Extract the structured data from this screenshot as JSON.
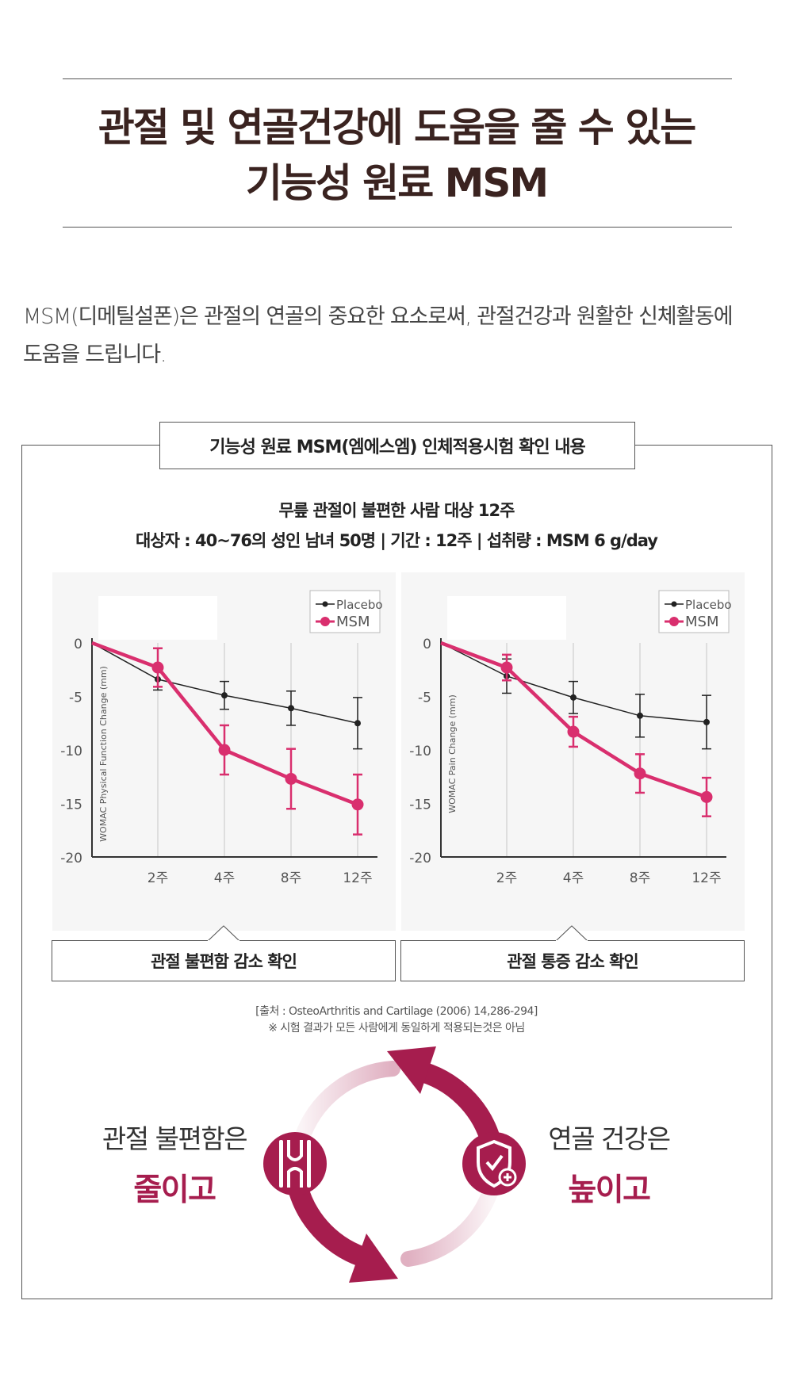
{
  "header": {
    "title_line1": "관절 및 연골건강에 도움을 줄 수 있는",
    "title_line2": "기능성 원료 MSM"
  },
  "intro": {
    "line1": "MSM(디메틸설폰)은 관절의 연골의  중요한 요소로써, 관절건강과 원활한 신체활동에",
    "line2": "도움을 드립니다."
  },
  "study": {
    "tab_title": "기능성 원료 MSM(엠에스엠) 인체적용시험 확인 내용",
    "line1": "무릎 관절이 불편한 사람 대상 12주",
    "line2": "대상자 : 40~76의 성인 남녀 50명   |   기간 : 12주   |   섭취량 : MSM 6 g/day"
  },
  "colors": {
    "title": "#3a2320",
    "msm": "#d92f6e",
    "placebo": "#222222",
    "accent": "#a61d4e"
  },
  "chart_data": [
    {
      "type": "line",
      "ylabel": "WOMAC Physical Function Change (mm)",
      "categories": [
        "0",
        "2주",
        "4주",
        "8주",
        "12주"
      ],
      "x_tick_labels": [
        "2주",
        "4주",
        "8주",
        "12주"
      ],
      "y_ticks": [
        "0",
        "-5",
        "-10",
        "-15",
        "-20"
      ],
      "ylim": [
        -20,
        0
      ],
      "legend_position": "top-right",
      "series": [
        {
          "name": "Placebo",
          "values": [
            0,
            -3.4,
            -4.9,
            -6.1,
            -7.5
          ],
          "err": [
            0,
            1.0,
            1.3,
            1.6,
            2.4
          ]
        },
        {
          "name": "MSM",
          "values": [
            0,
            -2.3,
            -10.0,
            -12.7,
            -15.1
          ],
          "err": [
            0,
            1.8,
            2.3,
            2.8,
            2.8
          ]
        }
      ],
      "caption": "관절 불편함 감소 확인"
    },
    {
      "type": "line",
      "ylabel": "WOMAC Pain Change (mm)",
      "categories": [
        "0",
        "2주",
        "4주",
        "8주",
        "12주"
      ],
      "x_tick_labels": [
        "2주",
        "4주",
        "8주",
        "12주"
      ],
      "y_ticks": [
        "0",
        "-5",
        "-10",
        "-15",
        "-20"
      ],
      "ylim": [
        -20,
        0
      ],
      "legend_position": "top-right",
      "series": [
        {
          "name": "Placebo",
          "values": [
            0,
            -3.1,
            -5.1,
            -6.8,
            -7.4
          ],
          "err": [
            0,
            1.6,
            1.5,
            2.0,
            2.5
          ]
        },
        {
          "name": "MSM",
          "values": [
            0,
            -2.3,
            -8.3,
            -12.2,
            -14.4
          ],
          "err": [
            0,
            1.2,
            1.4,
            1.8,
            1.8
          ]
        }
      ],
      "caption": "관절 통증 감소 확인"
    }
  ],
  "source": {
    "line1": "[출처 : OsteoArthritis and Cartilage (2006) 14,286-294]",
    "line2": "※ 시험 결과가 모든 사람에게 동일하게 적용되는것은 아님"
  },
  "cycle": {
    "left_line1": "관절 불편함은",
    "left_line2": "줄이고",
    "right_line1": "연골 건강은",
    "right_line2": "높이고",
    "left_icon": "joint-icon",
    "right_icon": "shield-plus-icon"
  }
}
